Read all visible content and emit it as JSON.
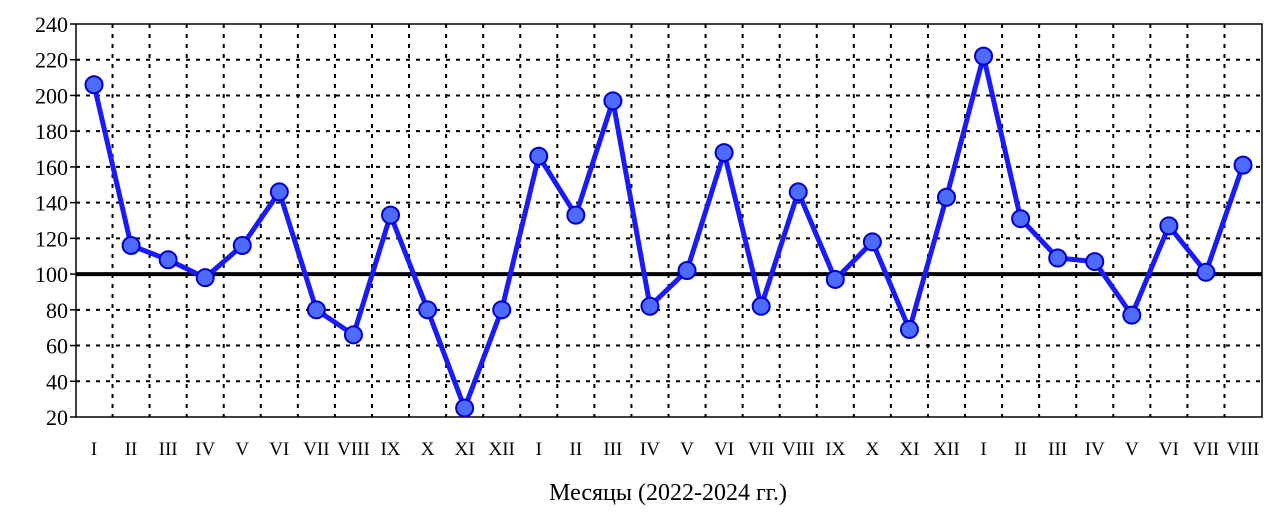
{
  "chart_data": {
    "type": "line",
    "xlabel": "Месяцы (2022-2024 гг.)",
    "ylabel": "",
    "title": "",
    "ylim": [
      20,
      240
    ],
    "yticks": [
      20,
      40,
      60,
      80,
      100,
      120,
      140,
      160,
      180,
      200,
      220,
      240
    ],
    "reference_line": 100,
    "grid": true,
    "categories": [
      "I",
      "II",
      "III",
      "IV",
      "V",
      "VI",
      "VII",
      "VIII",
      "IX",
      "X",
      "XI",
      "XII",
      "I",
      "II",
      "III",
      "IV",
      "V",
      "VI",
      "VII",
      "VIII",
      "IX",
      "X",
      "XI",
      "XII",
      "I",
      "II",
      "III",
      "IV",
      "V",
      "VI",
      "VII",
      "VIII"
    ],
    "series": [
      {
        "values": [
          206,
          116,
          108,
          98,
          116,
          146,
          80,
          66,
          133,
          80,
          25,
          80,
          166,
          133,
          197,
          82,
          102,
          168,
          82,
          146,
          97,
          118,
          69,
          143,
          222,
          131,
          109,
          107,
          77,
          127,
          101,
          161
        ]
      }
    ],
    "colors": {
      "line": "#1a1aff",
      "marker_fill": "#4d6bff",
      "reference": "#000000",
      "grid": "#000000"
    }
  }
}
